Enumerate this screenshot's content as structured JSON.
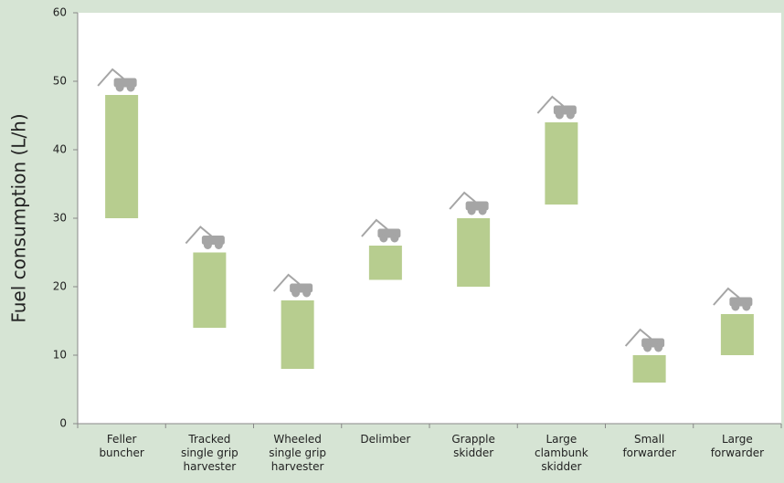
{
  "chart_data": {
    "type": "range_bar",
    "y_label": "Fuel consumption (L/h)",
    "categories": [
      "Feller buncher",
      "Tracked single grip harvester",
      "Wheeled single grip harvester",
      "Delimber",
      "Grapple skidder",
      "Large clambunk skidder",
      "Small forwarder",
      "Large forwarder"
    ],
    "low": [
      30,
      14,
      8,
      21,
      20,
      32,
      6,
      10
    ],
    "high": [
      48,
      25,
      18,
      26,
      30,
      44,
      10,
      16
    ],
    "color": "#b7cd8f",
    "ylim": [
      0,
      60
    ],
    "yticks": [
      0,
      10,
      20,
      30,
      40,
      50,
      60
    ],
    "grid": false
  }
}
